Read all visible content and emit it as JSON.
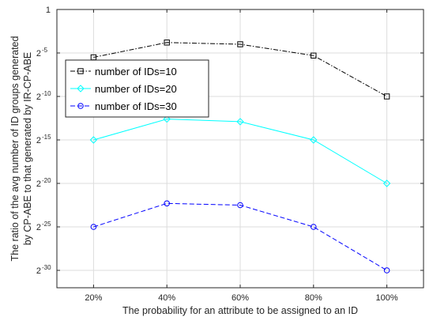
{
  "chart_data": {
    "type": "line",
    "title": "",
    "xlabel": "The probability for an attribute to be assigned to an ID",
    "ylabel_lines": [
      "The ratio of the avg number of ID groups generated",
      "by CP-ABE to that generated by IR-CP-ABE"
    ],
    "categories": [
      "20%",
      "40%",
      "60%",
      "80%",
      "100%"
    ],
    "y_scale": "log2",
    "y_exponent_range": [
      -32,
      0
    ],
    "y_ticks": [
      {
        "base": "1",
        "exp": ""
      },
      {
        "base": "2",
        "exp": "-5"
      },
      {
        "base": "2",
        "exp": "-10"
      },
      {
        "base": "2",
        "exp": "-15"
      },
      {
        "base": "2",
        "exp": "-20"
      },
      {
        "base": "2",
        "exp": "-25"
      },
      {
        "base": "2",
        "exp": "-30"
      }
    ],
    "y_tick_exponents": [
      0,
      -5,
      -10,
      -15,
      -20,
      -25,
      -30
    ],
    "grid": true,
    "legend_position": "top-left",
    "series": [
      {
        "name": "number of IDs=10",
        "color": "#000000",
        "dash": "dash-dot",
        "marker": "square",
        "log2_values": [
          -5.5,
          -3.8,
          -4.0,
          -5.3,
          -10.0
        ]
      },
      {
        "name": "number of IDs=20",
        "color": "#00ffff",
        "dash": "solid",
        "marker": "diamond",
        "log2_values": [
          -15.0,
          -12.6,
          -12.9,
          -15.0,
          -20.0
        ]
      },
      {
        "name": "number of IDs=30",
        "color": "#0000ff",
        "dash": "dashed",
        "marker": "circle",
        "log2_values": [
          -25.0,
          -22.3,
          -22.5,
          -25.0,
          -30.0
        ]
      }
    ]
  }
}
